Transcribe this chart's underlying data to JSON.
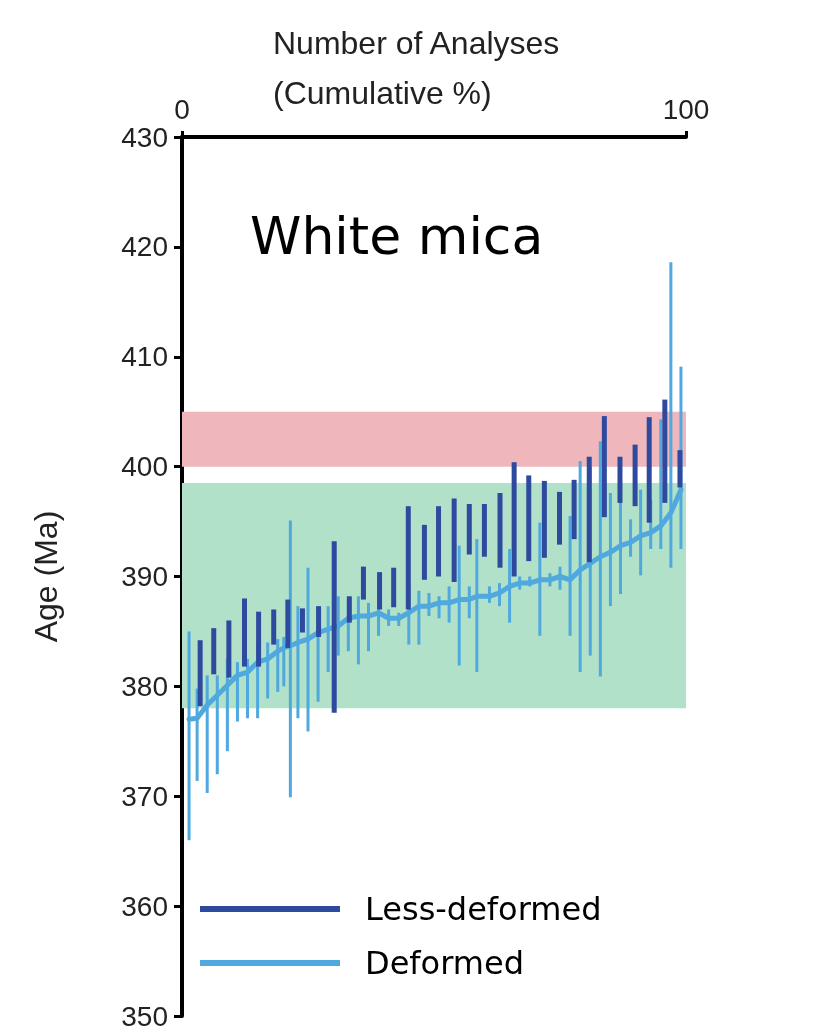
{
  "chart_data": {
    "type": "line",
    "title": "White mica",
    "xlabel": "Number of Analyses (Cumulative %)",
    "ylabel": "Age (Ma)",
    "xlim": [
      0,
      100
    ],
    "xticks": [
      0,
      100
    ],
    "ylim": [
      350,
      430
    ],
    "yticks": [
      350,
      360,
      370,
      380,
      390,
      400,
      410,
      420,
      430
    ],
    "grid": false,
    "legend": "bottom left",
    "marker": "none",
    "bands": [
      {
        "axis": "y",
        "from": 400,
        "to": 405,
        "color": "#efb6bc"
      },
      {
        "axis": "y",
        "from": 378,
        "to": 398.5,
        "color": "#b2e1c9"
      }
    ],
    "series": [
      {
        "name": "Less-deformed",
        "type": "bar",
        "color": "#2e4a9e",
        "x": [
          3.6,
          6.3,
          9.3,
          12.4,
          15.2,
          18.2,
          21.0,
          23.9,
          27.1,
          30.2,
          33.2,
          36.0,
          39.2,
          42.0,
          44.9,
          48.1,
          50.9,
          54.0,
          57.0,
          60.0,
          63.1,
          65.9,
          68.8,
          71.9,
          74.9,
          77.8,
          80.8,
          83.8,
          86.9,
          89.9,
          92.7,
          95.8,
          98.8
        ],
        "base": [
          378.2,
          381.1,
          380.8,
          381.8,
          381.8,
          383.8,
          383.5,
          384.9,
          384.5,
          377.6,
          385.8,
          387.9,
          387.0,
          387.2,
          387.0,
          389.7,
          390.0,
          389.5,
          392.0,
          391.8,
          390.8,
          390.0,
          391.4,
          391.7,
          392.9,
          393.4,
          391.3,
          395.4,
          396.7,
          396.4,
          394.9,
          396.7,
          398.1
        ],
        "values": [
          6,
          4.2,
          5.2,
          6.2,
          5,
          3.2,
          4.4,
          2.2,
          2.8,
          15.6,
          2.4,
          3,
          3.4,
          3.6,
          9.4,
          5,
          6.4,
          7.6,
          4.6,
          4.8,
          6.8,
          10.4,
          7.8,
          7,
          4.8,
          5.4,
          9.6,
          9.2,
          4.2,
          5.6,
          9.6,
          9.4,
          3.4
        ]
      },
      {
        "name": "Deformed",
        "color": "#4fa8de",
        "x": [
          1.4,
          3,
          5,
          7,
          9,
          11,
          13,
          15,
          17,
          19,
          20.2,
          21.5,
          23,
          25,
          27,
          29,
          31,
          33,
          35,
          37,
          39,
          41,
          43,
          45,
          47,
          49,
          51,
          53,
          55,
          57,
          58.5,
          61,
          63,
          65,
          67,
          69,
          71,
          73,
          75,
          77,
          79,
          81,
          83,
          85,
          87,
          89,
          91,
          93,
          95,
          97,
          99
        ],
        "values": [
          377,
          377.1,
          378.3,
          379.2,
          380.1,
          381,
          381.3,
          382.2,
          382.5,
          383.2,
          383.5,
          383.7,
          384,
          384.3,
          384.9,
          385.2,
          385.5,
          386.2,
          386.4,
          386.4,
          386.7,
          386.2,
          386.2,
          386.7,
          387.3,
          387.3,
          387.6,
          387.6,
          387.9,
          387.9,
          388.2,
          388.2,
          388.5,
          389.1,
          389.4,
          389.4,
          389.7,
          389.7,
          390,
          389.7,
          390.6,
          391.2,
          391.8,
          392.2,
          392.8,
          393.1,
          393.7,
          394,
          394.6,
          395.8,
          397.9
        ],
        "errors": [
          [
            366,
            385
          ],
          [
            371.4,
            379.8
          ],
          [
            370.3,
            381
          ],
          [
            372,
            381
          ],
          [
            374.1,
            382.5
          ],
          [
            376.8,
            382.2
          ],
          [
            377.1,
            382.5
          ],
          [
            377.1,
            384
          ],
          [
            378.9,
            384
          ],
          [
            379.5,
            384.3
          ],
          [
            380,
            384.5
          ],
          [
            369.9,
            395.1
          ],
          [
            377.1,
            387.3
          ],
          [
            375.9,
            390.8
          ],
          [
            378.6,
            387.3
          ],
          [
            381.3,
            387.3
          ],
          [
            382.8,
            388.2
          ],
          [
            383.2,
            387.9
          ],
          [
            382,
            388.2
          ],
          [
            383.2,
            387.6
          ],
          [
            384.6,
            387.5
          ],
          [
            385.5,
            387
          ],
          [
            385.5,
            386.7
          ],
          [
            383.8,
            389.1
          ],
          [
            383.8,
            388.7
          ],
          [
            386.4,
            388.5
          ],
          [
            386.2,
            388.2
          ],
          [
            385.8,
            389.1
          ],
          [
            381.9,
            392.8
          ],
          [
            386.2,
            389.1
          ],
          [
            381.3,
            393.4
          ],
          [
            387.6,
            389.1
          ],
          [
            387.3,
            389.4
          ],
          [
            385.8,
            392.5
          ],
          [
            388.8,
            390
          ],
          [
            389.1,
            390
          ],
          [
            384.6,
            394.9
          ],
          [
            389.1,
            390.3
          ],
          [
            388.8,
            390.9
          ],
          [
            384.6,
            395.5
          ],
          [
            381.3,
            400.5
          ],
          [
            382.8,
            400
          ],
          [
            380.9,
            402.3
          ],
          [
            387.3,
            397.6
          ],
          [
            388.4,
            397.3
          ],
          [
            391.8,
            395.2
          ],
          [
            390.1,
            397.9
          ],
          [
            392.5,
            397
          ],
          [
            392.5,
            404.3
          ],
          [
            390.8,
            418.6
          ],
          [
            392.5,
            409.1
          ]
        ]
      }
    ]
  }
}
